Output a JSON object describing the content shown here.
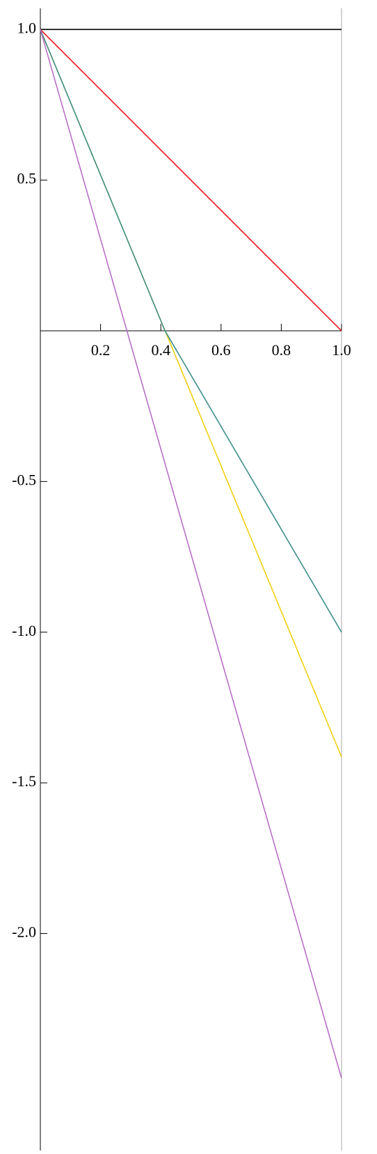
{
  "chart_data": {
    "type": "line",
    "xlim": [
      0,
      1
    ],
    "ylim": [
      -2.72,
      1.07
    ],
    "xticks": [
      0.2,
      0.4,
      0.6,
      0.8,
      {
        "value": 1,
        "label": "1.0"
      }
    ],
    "yticks": [
      {
        "value": 1,
        "label": "1.0"
      },
      {
        "value": 0.5,
        "label": "0.5"
      },
      {
        "value": -0.5,
        "label": "-0.5"
      },
      {
        "value": -1,
        "label": "-1.0"
      },
      {
        "value": -1.5,
        "label": "-1.5"
      },
      {
        "value": -2,
        "label": "-2.0"
      }
    ],
    "series": [
      {
        "color": "#000000",
        "x": [
          0,
          1
        ],
        "values": [
          1,
          1
        ]
      },
      {
        "color": "#e8141c",
        "x": [
          0,
          1
        ],
        "values": [
          1,
          0
        ]
      },
      {
        "color": "#f2cf11",
        "x": [
          0,
          1
        ],
        "values": [
          1,
          -1.414
        ]
      },
      {
        "color": "#3e8e8a",
        "x": [
          0,
          0.414,
          1
        ],
        "values": [
          1,
          0,
          -1
        ]
      },
      {
        "color": "#b86fc6",
        "x": [
          0,
          1
        ],
        "values": [
          1,
          -2.48
        ]
      }
    ]
  }
}
